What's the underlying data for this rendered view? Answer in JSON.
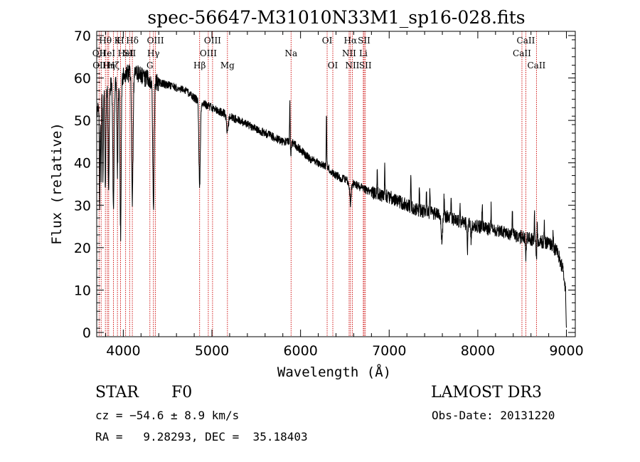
{
  "chart_data": {
    "type": "line",
    "title": "spec-56647-M31010N33M1_sp16-028.fits",
    "xlabel": "Wavelength (Å)",
    "ylabel": "Flux (relative)",
    "xlim": [
      3700,
      9100
    ],
    "ylim": [
      -1,
      71
    ],
    "xticks": [
      4000,
      5000,
      6000,
      7000,
      8000,
      9000
    ],
    "xtick_labels": [
      "4000",
      "5000",
      "6000",
      "7000",
      "8000",
      "9000"
    ],
    "yticks": [
      0,
      10,
      20,
      30,
      40,
      50,
      60,
      70
    ],
    "ytick_labels": [
      "0",
      "10",
      "20",
      "30",
      "40",
      "50",
      "60",
      "70"
    ],
    "continuum": [
      [
        3700,
        52
      ],
      [
        3760,
        56
      ],
      [
        3850,
        58
      ],
      [
        3950,
        60
      ],
      [
        4050,
        61
      ],
      [
        4150,
        61
      ],
      [
        4250,
        60
      ],
      [
        4400,
        59
      ],
      [
        4550,
        58
      ],
      [
        4700,
        57
      ],
      [
        4820,
        55
      ],
      [
        4900,
        54
      ],
      [
        5000,
        53
      ],
      [
        5100,
        52
      ],
      [
        5200,
        51
      ],
      [
        5300,
        50
      ],
      [
        5400,
        49
      ],
      [
        5500,
        48
      ],
      [
        5600,
        47
      ],
      [
        5700,
        46
      ],
      [
        5800,
        45
      ],
      [
        5900,
        45
      ],
      [
        6000,
        43
      ],
      [
        6100,
        41
      ],
      [
        6200,
        40
      ],
      [
        6300,
        39
      ],
      [
        6400,
        37
      ],
      [
        6500,
        36
      ],
      [
        6600,
        35
      ],
      [
        6700,
        34
      ],
      [
        6800,
        33
      ],
      [
        6900,
        32.5
      ],
      [
        7000,
        32
      ],
      [
        7100,
        31
      ],
      [
        7200,
        30
      ],
      [
        7300,
        29
      ],
      [
        7400,
        28.5
      ],
      [
        7500,
        28
      ],
      [
        7600,
        27.5
      ],
      [
        7700,
        27
      ],
      [
        7800,
        26
      ],
      [
        7900,
        25.5
      ],
      [
        8000,
        25
      ],
      [
        8100,
        24.5
      ],
      [
        8200,
        24
      ],
      [
        8300,
        23.5
      ],
      [
        8400,
        23
      ],
      [
        8500,
        22.5
      ],
      [
        8600,
        22
      ],
      [
        8700,
        21.5
      ],
      [
        8800,
        21
      ],
      [
        8900,
        19
      ],
      [
        8960,
        15
      ],
      [
        8990,
        10
      ],
      [
        9000,
        1
      ]
    ],
    "absorption_lines": [
      {
        "center": 3734,
        "depth": 25,
        "width": 4
      },
      {
        "center": 3750,
        "depth": 18,
        "width": 4
      },
      {
        "center": 3771,
        "depth": 20,
        "width": 4
      },
      {
        "center": 3798,
        "depth": 22,
        "width": 5
      },
      {
        "center": 3835,
        "depth": 25,
        "width": 6
      },
      {
        "center": 3889,
        "depth": 30,
        "width": 7
      },
      {
        "center": 3934,
        "depth": 22,
        "width": 6
      },
      {
        "center": 3969,
        "depth": 37,
        "width": 7
      },
      {
        "center": 4102,
        "depth": 30,
        "width": 8
      },
      {
        "center": 4340,
        "depth": 30,
        "width": 8
      },
      {
        "center": 4861,
        "depth": 20,
        "width": 8
      },
      {
        "center": 5175,
        "depth": 4,
        "width": 10
      },
      {
        "center": 5890,
        "depth": 3,
        "width": 6
      },
      {
        "center": 6563,
        "depth": 5,
        "width": 8
      },
      {
        "center": 7594,
        "depth": 6,
        "width": 8
      },
      {
        "center": 7883,
        "depth": 6,
        "width": 4
      },
      {
        "center": 7925,
        "depth": 4,
        "width": 4
      },
      {
        "center": 8542,
        "depth": 4,
        "width": 4
      },
      {
        "center": 8662,
        "depth": 5,
        "width": 4
      }
    ],
    "emission_spikes": [
      [
        5880,
        10
      ],
      [
        6293,
        12
      ],
      [
        6865,
        6
      ],
      [
        6950,
        8
      ],
      [
        7245,
        8
      ],
      [
        7340,
        6
      ],
      [
        7420,
        5
      ],
      [
        7460,
        6
      ],
      [
        7620,
        5
      ],
      [
        7700,
        6
      ],
      [
        7800,
        5
      ],
      [
        8050,
        6
      ],
      [
        8150,
        5
      ],
      [
        8390,
        5
      ],
      [
        8640,
        6
      ],
      [
        8670,
        5
      ],
      [
        8750,
        5
      ],
      [
        8850,
        4
      ]
    ],
    "noise": 1.0,
    "spectral_lines": [
      {
        "wavelength": 3727,
        "label": "OII",
        "row": 1
      },
      {
        "wavelength": 3750,
        "label": "OIII",
        "row": 2
      },
      {
        "wavelength": 3798,
        "label": "Hθ",
        "row": 0
      },
      {
        "wavelength": 3820,
        "label": "HeI",
        "row": 1
      },
      {
        "wavelength": 3835,
        "label": "Hη",
        "row": 2
      },
      {
        "wavelength": 3889,
        "label": "Hζ",
        "row": 2
      },
      {
        "wavelength": 3934,
        "label": "K",
        "row": 0
      },
      {
        "wavelength": 3969,
        "label": "H",
        "row": 0
      },
      {
        "wavelength": 4026,
        "label": "HeI",
        "row": 1
      },
      {
        "wavelength": 4072,
        "label": "SII",
        "row": 1
      },
      {
        "wavelength": 4102,
        "label": "Hδ",
        "row": 0
      },
      {
        "wavelength": 4300,
        "label": "G",
        "row": 2
      },
      {
        "wavelength": 4340,
        "label": "Hγ",
        "row": 1
      },
      {
        "wavelength": 4363,
        "label": "OIII",
        "row": 0
      },
      {
        "wavelength": 4861,
        "label": "Hβ",
        "row": 2
      },
      {
        "wavelength": 4959,
        "label": "OIII",
        "row": 1
      },
      {
        "wavelength": 5007,
        "label": "OIII",
        "row": 0
      },
      {
        "wavelength": 5175,
        "label": "Mg",
        "row": 2
      },
      {
        "wavelength": 5893,
        "label": "Na",
        "row": 1
      },
      {
        "wavelength": 6300,
        "label": "OI",
        "row": 0
      },
      {
        "wavelength": 6364,
        "label": "OI",
        "row": 2
      },
      {
        "wavelength": 6548,
        "label": "NII",
        "row": 1
      },
      {
        "wavelength": 6563,
        "label": "Hα",
        "row": 0
      },
      {
        "wavelength": 6584,
        "label": "NII",
        "row": 2
      },
      {
        "wavelength": 6708,
        "label": "Li",
        "row": 1
      },
      {
        "wavelength": 6717,
        "label": "SII",
        "row": 0
      },
      {
        "wavelength": 6731,
        "label": "SII",
        "row": 2
      },
      {
        "wavelength": 8498,
        "label": "CaII",
        "row": 1
      },
      {
        "wavelength": 8542,
        "label": "CaII",
        "row": 0
      },
      {
        "wavelength": 8662,
        "label": "CaII",
        "row": 2
      }
    ]
  },
  "footer": {
    "object_class": "STAR",
    "subclass": "F0",
    "survey": "LAMOST DR3",
    "cz": "cz = −54.6 ± 8.9 km/s",
    "obs_date": "Obs-Date: 20131220",
    "coords": "RA =   9.28293, DEC =  35.18403"
  },
  "colors": {
    "spectrum": "#000000",
    "line_markers": "#cc0000",
    "axes": "#000000"
  }
}
